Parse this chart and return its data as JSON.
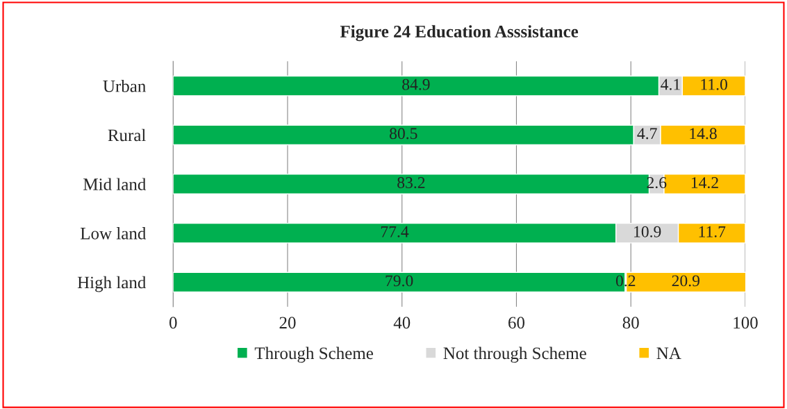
{
  "chart_data": {
    "type": "bar",
    "title": "Figure 24 Education Asssistance",
    "orientation": "horizontal",
    "stacked": true,
    "categories": [
      "Urban",
      "Rural",
      "Mid land",
      "Low land",
      "High land"
    ],
    "series": [
      {
        "name": "Through Scheme",
        "color": "#00b050",
        "values": [
          84.9,
          80.5,
          83.2,
          77.4,
          79.0
        ],
        "value_labels": [
          "84.9",
          "80.5",
          "83.2",
          "77.4",
          "79.0"
        ]
      },
      {
        "name": "Not through Scheme",
        "color": "#d9d9d9",
        "values": [
          4.1,
          4.7,
          2.6,
          10.9,
          0.2
        ],
        "value_labels": [
          "4.1",
          "4.7",
          "2.6",
          "10.9",
          "0.2"
        ]
      },
      {
        "name": "NA",
        "color": "#ffc000",
        "values": [
          11.0,
          14.8,
          14.2,
          11.7,
          20.9
        ],
        "value_labels": [
          "11.0",
          "14.8",
          "14.2",
          "11.7",
          "20.9"
        ]
      }
    ],
    "xlim": [
      0,
      100
    ],
    "xticks": [
      0,
      20,
      40,
      60,
      80,
      100
    ],
    "grid": "x",
    "legend": "bottom"
  }
}
